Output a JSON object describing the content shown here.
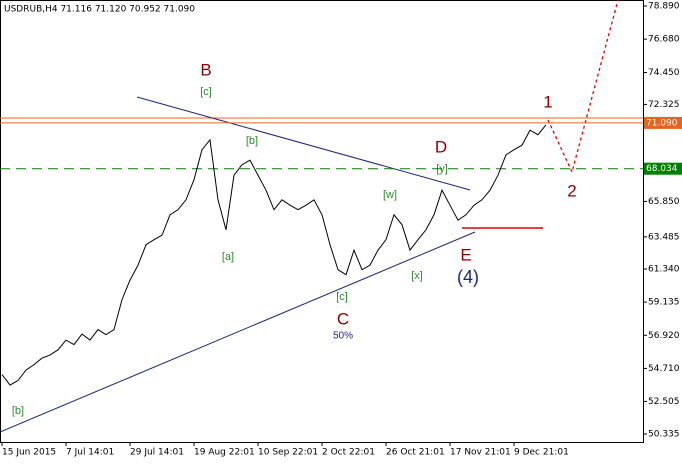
{
  "chart_data": {
    "type": "line",
    "title": "USDRUB,H4  71.116 71.120 70.952 71.090",
    "categories": [
      "15 Jun 2015",
      null,
      null,
      null,
      null,
      null,
      null,
      null,
      "7 Jul 14:01",
      null,
      null,
      null,
      null,
      null,
      null,
      null,
      "29 Jul 14:01",
      null,
      null,
      null,
      null,
      null,
      null,
      null,
      "19 Aug 22:01",
      null,
      null,
      null,
      null,
      null,
      null,
      null,
      "10 Sep 22:01",
      null,
      null,
      null,
      null,
      null,
      null,
      null,
      "2 Oct 22:01",
      null,
      null,
      null,
      null,
      null,
      null,
      null,
      "26 Oct 21:01",
      null,
      null,
      null,
      null,
      null,
      null,
      null,
      "17 Nov 21:01",
      null,
      null,
      null,
      null,
      null,
      null,
      null,
      "9 Dec 21:01",
      null,
      null,
      null,
      null
    ],
    "series": [
      {
        "name": "USDRUB,H4",
        "color": "#000000",
        "values": [
          54.3,
          53.6,
          53.9,
          54.6,
          54.96,
          55.4,
          55.6,
          55.95,
          56.6,
          56.3,
          57.0,
          56.6,
          57.3,
          56.96,
          57.3,
          59.3,
          60.6,
          61.6,
          62.96,
          63.3,
          63.6,
          64.96,
          65.3,
          65.96,
          67.3,
          69.3,
          69.96,
          65.96,
          63.96,
          67.6,
          68.3,
          68.6,
          67.6,
          66.6,
          65.3,
          65.96,
          65.6,
          65.3,
          65.6,
          65.96,
          64.96,
          62.96,
          61.3,
          60.96,
          62.6,
          61.3,
          61.6,
          62.6,
          63.3,
          64.96,
          64.3,
          62.6,
          63.3,
          63.96,
          64.96,
          66.6,
          65.6,
          64.6,
          64.96,
          65.6,
          65.96,
          66.6,
          67.6,
          68.96,
          69.3,
          69.6,
          70.6,
          70.3,
          70.96
        ]
      }
    ],
    "ylim": [
      49.8,
      79.29
    ],
    "yticks": [
      {
        "value": 78.89,
        "label": "78.890"
      },
      {
        "value": 76.68,
        "label": "76.680"
      },
      {
        "value": 74.45,
        "label": "74.450"
      },
      72.325,
      {
        "value": 65.85,
        "label": "65.850"
      },
      63.485,
      {
        "value": 61.34,
        "label": "61.340"
      },
      59.135,
      {
        "value": 56.92,
        "label": "56.920"
      },
      {
        "value": 54.71,
        "label": "54.710"
      },
      52.505,
      50.335
    ],
    "hlines": [
      {
        "value": 71.09,
        "label": "71.090",
        "color": "#e8641e"
      },
      {
        "value": 68.034,
        "color": "#008000"
      }
    ],
    "annotations": [
      "B",
      "[c]",
      "[b]",
      "[a]",
      "C",
      "[c]",
      "50%",
      "D",
      "[y]",
      "[w]",
      "[x]",
      "E",
      "(4)",
      "1",
      "2",
      "[b]"
    ]
  }
}
